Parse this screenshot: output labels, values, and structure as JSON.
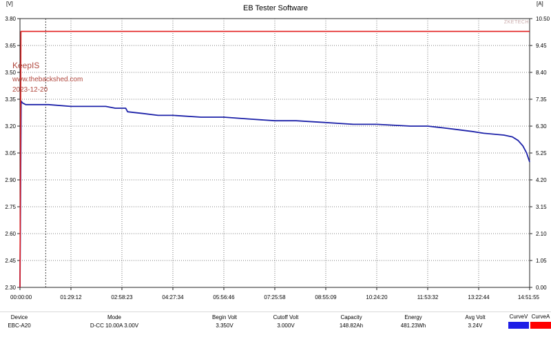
{
  "window": {
    "title": "EB Tester Software"
  },
  "axes": {
    "left_unit": "[V]",
    "right_unit": "[A]"
  },
  "watermark": {
    "name": "KeepIS",
    "site": "www.thebackshed.com",
    "date": "2023-12-20"
  },
  "brand": "ZKETECH",
  "colors": {
    "voltage": "#1b20a8",
    "current": "#e21d1d",
    "grid": "#444444",
    "watermark": "#b0463c"
  },
  "chart_data": {
    "type": "line",
    "title": "",
    "x_ticks": [
      "00:00:00",
      "01:29:12",
      "02:58:23",
      "04:27:34",
      "05:56:46",
      "07:25:58",
      "08:55:09",
      "10:24:20",
      "11:53:32",
      "13:22:44",
      "14:51:55"
    ],
    "x_seconds_range": [
      0,
      53515
    ],
    "y_left": {
      "label": "[V]",
      "ylim": [
        2.3,
        3.8
      ],
      "ticks": [
        "3.80",
        "3.65",
        "3.50",
        "3.35",
        "3.20",
        "3.05",
        "2.90",
        "2.75",
        "2.60",
        "2.45",
        "2.30"
      ]
    },
    "y_right": {
      "label": "[A]",
      "ylim": [
        0.0,
        10.5
      ],
      "ticks": [
        "10.50",
        "9.45",
        "8.40",
        "7.35",
        "6.30",
        "5.25",
        "4.20",
        "3.15",
        "2.10",
        "1.05",
        "0.00"
      ]
    },
    "grid": true,
    "series": [
      {
        "name": "CurveV",
        "axis": "left",
        "color": "#1b20a8",
        "points": [
          [
            0,
            2.3
          ],
          [
            120,
            3.34
          ],
          [
            250,
            3.33
          ],
          [
            600,
            3.32
          ],
          [
            3000,
            3.32
          ],
          [
            5352,
            3.31
          ],
          [
            9000,
            3.31
          ],
          [
            10000,
            3.3
          ],
          [
            11100,
            3.3
          ],
          [
            11300,
            3.28
          ],
          [
            13000,
            3.27
          ],
          [
            14500,
            3.26
          ],
          [
            16060,
            3.26
          ],
          [
            19000,
            3.25
          ],
          [
            21400,
            3.25
          ],
          [
            24000,
            3.24
          ],
          [
            26760,
            3.23
          ],
          [
            29000,
            3.23
          ],
          [
            32100,
            3.22
          ],
          [
            35000,
            3.21
          ],
          [
            37460,
            3.21
          ],
          [
            41000,
            3.2
          ],
          [
            42812,
            3.2
          ],
          [
            44500,
            3.19
          ],
          [
            46000,
            3.18
          ],
          [
            47500,
            3.17
          ],
          [
            48700,
            3.16
          ],
          [
            50800,
            3.15
          ],
          [
            51700,
            3.14
          ],
          [
            52300,
            3.12
          ],
          [
            52800,
            3.09
          ],
          [
            53200,
            3.05
          ],
          [
            53515,
            3.0
          ]
        ]
      },
      {
        "name": "CurveA",
        "axis": "right",
        "color": "#e21d1d",
        "points": [
          [
            0,
            0.0
          ],
          [
            100,
            10.0
          ],
          [
            53515,
            10.0
          ]
        ]
      }
    ],
    "vertical_marker_seconds": 2700
  },
  "status": {
    "columns": [
      {
        "header": "Device",
        "value": "EBC-A20"
      },
      {
        "header": "Mode",
        "value": "D-CC 10.00A  3.00V"
      },
      {
        "header": "Begin Volt",
        "value": "3.350V"
      },
      {
        "header": "Cutoff Volt",
        "value": "3.000V"
      },
      {
        "header": "Capacity",
        "value": "148.82Ah"
      },
      {
        "header": "Energy",
        "value": "481.23Wh"
      },
      {
        "header": "Avg Volt",
        "value": "3.24V"
      }
    ],
    "curves": [
      {
        "label": "CurveV",
        "color": "#1e1ee6"
      },
      {
        "label": "CurveA",
        "color": "#ff0000"
      }
    ]
  }
}
